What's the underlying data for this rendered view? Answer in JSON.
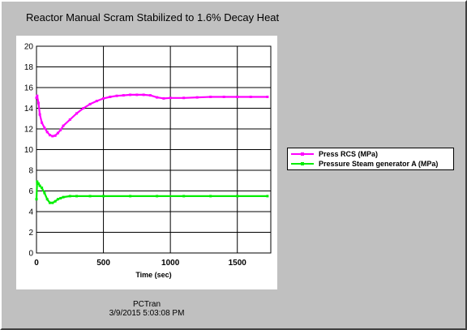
{
  "window": {
    "title": "Reactor Manual Scram Stabilized to 1.6% Decay Heat",
    "footer_line1": "PCTran",
    "footer_line2": "3/9/2015 5:03:08 PM"
  },
  "chart_data": {
    "type": "line",
    "title": "Reactor Manual Scram Stabilized to 1.6% Decay Heat",
    "xlabel": "Time (sec)",
    "ylabel": "",
    "xlim": [
      0,
      1750
    ],
    "ylim": [
      0,
      20
    ],
    "x_ticks": [
      0,
      500,
      1000,
      1500
    ],
    "x_tick_labels": [
      "0",
      "500",
      "1000",
      "1500"
    ],
    "y_ticks": [
      0,
      2,
      4,
      6,
      8,
      10,
      12,
      14,
      16,
      18,
      20
    ],
    "y_tick_labels": [
      "0",
      "2",
      "4",
      "6",
      "8",
      "10",
      "12",
      "14",
      "16",
      "18",
      "20"
    ],
    "grid": true,
    "legend_position": "right",
    "series": [
      {
        "name": "Press RCS (MPa)",
        "color": "#ff00ff",
        "x": [
          0,
          5,
          15,
          25,
          40,
          60,
          80,
          100,
          120,
          140,
          160,
          180,
          200,
          250,
          300,
          350,
          400,
          450,
          500,
          550,
          600,
          650,
          700,
          750,
          800,
          850,
          900,
          950,
          1000,
          1100,
          1200,
          1300,
          1400,
          1500,
          1600,
          1725
        ],
        "y": [
          15.0,
          15.2,
          14.5,
          13.4,
          12.6,
          12.1,
          11.7,
          11.4,
          11.3,
          11.35,
          11.6,
          11.9,
          12.3,
          12.9,
          13.5,
          14.0,
          14.4,
          14.7,
          14.95,
          15.1,
          15.2,
          15.25,
          15.3,
          15.3,
          15.3,
          15.25,
          15.05,
          14.95,
          15.0,
          15.0,
          15.05,
          15.1,
          15.1,
          15.1,
          15.1,
          15.1
        ]
      },
      {
        "name": "Pressure Steam generator A (MPa)",
        "color": "#00ee00",
        "x": [
          0,
          5,
          15,
          25,
          40,
          60,
          80,
          100,
          120,
          140,
          160,
          180,
          200,
          250,
          300,
          400,
          500,
          700,
          900,
          1100,
          1300,
          1500,
          1725
        ],
        "y": [
          5.2,
          6.9,
          6.7,
          6.5,
          6.3,
          5.8,
          5.2,
          4.85,
          4.85,
          5.0,
          5.2,
          5.3,
          5.4,
          5.5,
          5.5,
          5.5,
          5.5,
          5.5,
          5.5,
          5.5,
          5.5,
          5.5,
          5.5
        ]
      }
    ]
  }
}
